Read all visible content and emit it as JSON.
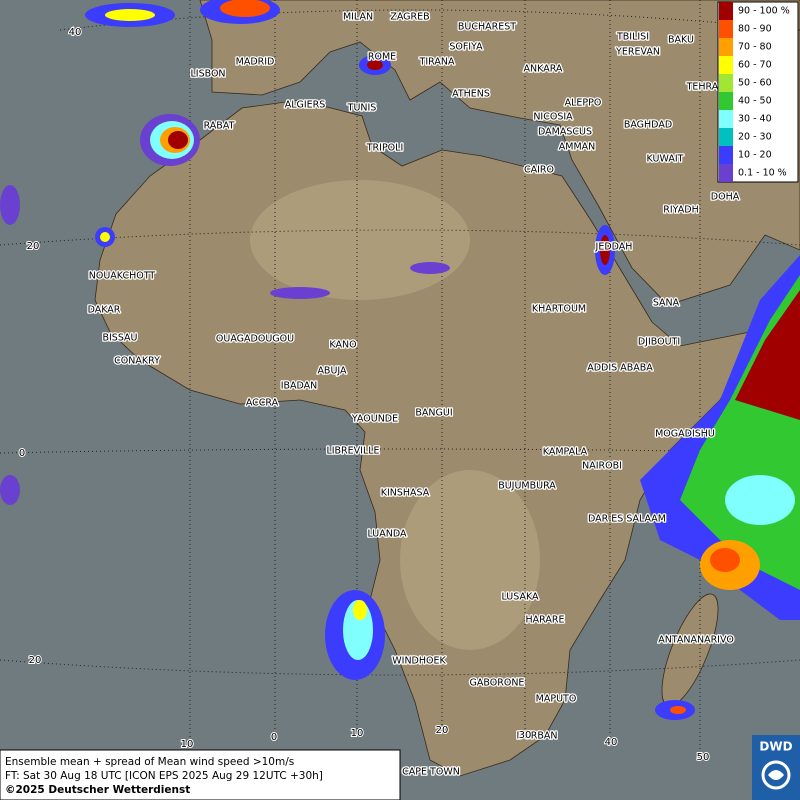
{
  "cities": [
    "MILAN",
    "ZAGREB",
    "BUCHAREST",
    "TBILISI",
    "BAKU",
    "SOFIYA",
    "YEREVAN",
    "MADRID",
    "ROME",
    "TIRANA",
    "ANKARA",
    "TEHRAN",
    "LISBON",
    "ATHENS",
    "ALGIERS",
    "TUNIS",
    "ALEPPO",
    "RABAT",
    "NICOSIA",
    "BAGHDAD",
    "DAMASCUS",
    "AMMAN",
    "TRIPOLI",
    "KUWAIT",
    "CAIRO",
    "DOHA",
    "RIYADH",
    "JEDDAH",
    "NOUAKCHOTT",
    "SANA",
    "DAKAR",
    "KHARTOUM",
    "BISSAU",
    "DJIBOUTI",
    "OUAGADOUGOU",
    "KANO",
    "CONAKRY",
    "ADDIS ABABA",
    "ABUJA",
    "IBADAN",
    "ACCRA",
    "YAOUNDE",
    "BANGUI",
    "MOGADISHU",
    "LIBREVILLE",
    "KAMPALA",
    "NAIROBI",
    "KINSHASA",
    "BUJUMBURA",
    "DAR ES SALAAM",
    "LUANDA",
    "LUSAKA",
    "HARARE",
    "ANTANANARIVO",
    "WINDHOEK",
    "GABORONE",
    "MAPUTO",
    "DURBAN",
    "CAPE TOWN"
  ],
  "grid_labels": {
    "latitude": [
      "40",
      "20",
      "0",
      "20"
    ],
    "longitude": [
      "10",
      "0",
      "10",
      "20",
      "30",
      "40",
      "50"
    ]
  },
  "legend": {
    "entries": [
      {
        "label": "90 - 100 %",
        "color": "#a00000"
      },
      {
        "label": "80 - 90",
        "color": "#ff5000"
      },
      {
        "label": "70 - 80",
        "color": "#ffa000"
      },
      {
        "label": "60 - 70",
        "color": "#ffff00"
      },
      {
        "label": "50 - 60",
        "color": "#a0e632"
      },
      {
        "label": "40 - 50",
        "color": "#32c832"
      },
      {
        "label": "30 - 40",
        "color": "#80ffff"
      },
      {
        "label": "20 - 30",
        "color": "#00c0c0"
      },
      {
        "label": "10 - 20",
        "color": "#3c3cff"
      },
      {
        "label": "0.1 - 10 %",
        "color": "#6a40d0"
      }
    ]
  },
  "footer": {
    "lines": [
      "Ensemble mean + spread of Mean wind speed >10m/s",
      "FT: Sat 30 Aug 18 UTC [ICON EPS 2025 Aug 29 12UTC +30h]",
      "©2025 Deutscher Wetterdienst"
    ]
  },
  "logo": "DWD"
}
